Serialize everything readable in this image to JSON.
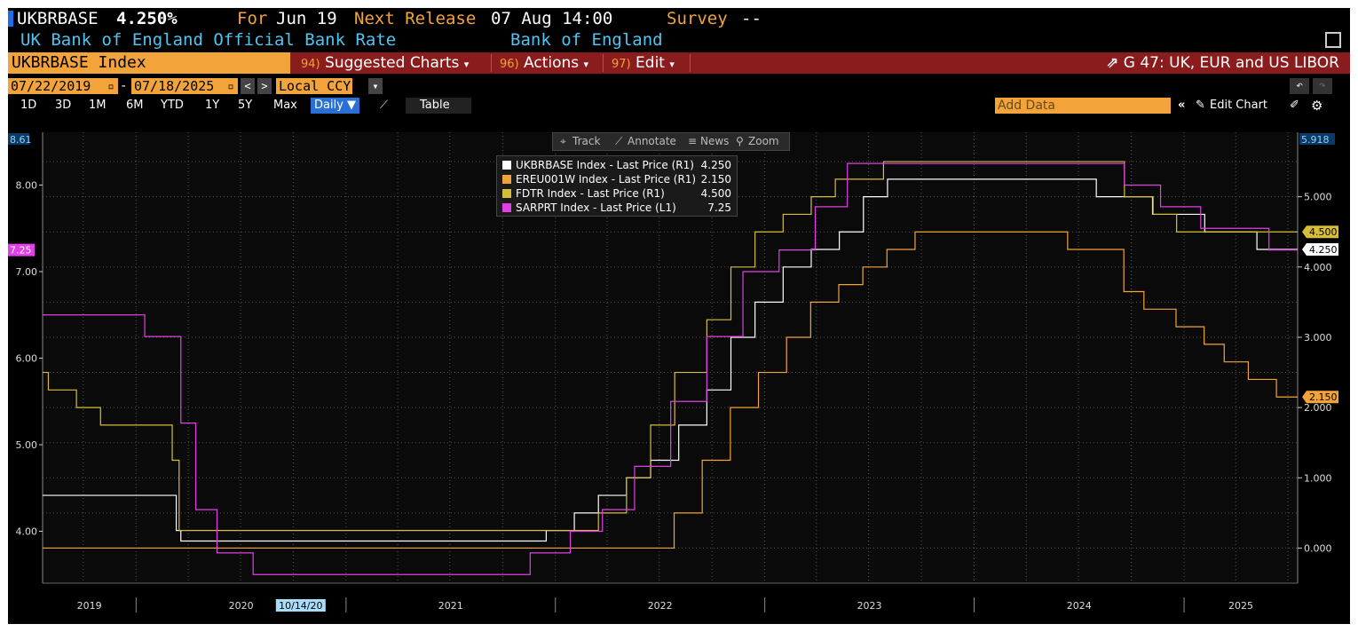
{
  "header": {
    "ticker": "UKBRBASE",
    "value": "4.250%",
    "for_label": "For",
    "for_value": "Jun 19",
    "next_release_label": "Next Release",
    "next_release_value": "07 Aug 14:00",
    "survey_label": "Survey",
    "survey_value": "--",
    "description": "UK Bank of England Official Bank Rate",
    "source": "Bank of England"
  },
  "command_bar": {
    "security": "UKBRBASE Index",
    "suggested_num": "94)",
    "suggested_label": "Suggested Charts",
    "actions_num": "96)",
    "actions_label": "Actions",
    "edit_num": "97)",
    "edit_label": "Edit",
    "chart_link": "G 47: UK, EUR and US LIBOR"
  },
  "date_range": {
    "start": "07/22/2019",
    "dash": "-",
    "end": "07/18/2025",
    "currency": "Local CCY"
  },
  "periods": [
    "1D",
    "3D",
    "1M",
    "6M",
    "YTD",
    "1Y",
    "5Y",
    "Max"
  ],
  "frequency": "Daily ▼",
  "table_label": "Table",
  "add_data_placeholder": "Add Data",
  "edit_chart_label": "Edit Chart",
  "toolbox": {
    "track": "Track",
    "annotate": "Annotate",
    "news": "News",
    "zoom": "Zoom"
  },
  "legend": [
    {
      "name": "UKBRBASE Index - Last Price (R1)",
      "value": "4.250",
      "color": "#ffffff"
    },
    {
      "name": "EREU001W Index - Last Price (R1)",
      "value": "2.150",
      "color": "#f2a33a"
    },
    {
      "name": "FDTR Index - Last Price (R1)",
      "value": "4.500",
      "color": "#d6bd3a"
    },
    {
      "name": "SARPRT Index - Last Price (L1)",
      "value": "7.25",
      "color": "#e040e6"
    }
  ],
  "colors": {
    "ukbr": "#ffffff",
    "ereu": "#f2a33a",
    "fdtr": "#d6bd3a",
    "sarprt": "#e040e6",
    "grid": "#555555",
    "background": "#000000"
  },
  "chart_data": {
    "type": "line",
    "x_range": [
      "2019-07-22",
      "2025-07-18"
    ],
    "x_tick_labels": [
      "2019",
      "2020",
      "2021",
      "2022",
      "2023",
      "2024",
      "2025"
    ],
    "crosshair_date_label": "10/14/20",
    "left_axis": {
      "ticks": [
        "4.00",
        "5.00",
        "6.00",
        "7.00",
        "8.00"
      ],
      "top_label": "8.61",
      "ylim": [
        3.4,
        8.61
      ],
      "last_value_label": "7.25"
    },
    "right_axis": {
      "ticks": [
        "0.000",
        "1.000",
        "2.000",
        "3.000",
        "4.000",
        "5.000"
      ],
      "top_label": "5.918",
      "ylim": [
        -0.5,
        5.918
      ],
      "last_value_labels": [
        "4.500",
        "4.250",
        "2.150"
      ]
    },
    "series": [
      {
        "name": "UKBRBASE Index - Last Price (R1)",
        "axis": "right",
        "x": [
          "2019-07-22",
          "2020-03-11",
          "2020-03-19",
          "2021-12-16",
          "2022-02-03",
          "2022-03-17",
          "2022-05-05",
          "2022-06-16",
          "2022-08-04",
          "2022-09-22",
          "2022-11-03",
          "2022-12-15",
          "2023-02-02",
          "2023-03-23",
          "2023-05-11",
          "2023-06-22",
          "2023-08-03",
          "2024-08-01",
          "2024-11-07",
          "2025-02-06",
          "2025-05-08",
          "2025-07-18"
        ],
        "y": [
          0.75,
          0.25,
          0.1,
          0.25,
          0.5,
          0.75,
          1.0,
          1.25,
          1.75,
          2.25,
          3.0,
          3.5,
          4.0,
          4.25,
          4.5,
          5.0,
          5.25,
          5.0,
          4.75,
          4.5,
          4.25,
          4.25
        ]
      },
      {
        "name": "EREU001W Index - Last Price (R1)",
        "axis": "right",
        "x": [
          "2019-07-22",
          "2022-07-27",
          "2022-09-14",
          "2022-11-02",
          "2022-12-21",
          "2023-02-08",
          "2023-03-22",
          "2023-05-10",
          "2023-06-21",
          "2023-08-02",
          "2023-09-20",
          "2024-06-12",
          "2024-09-18",
          "2024-10-23",
          "2024-12-18",
          "2025-02-05",
          "2025-03-12",
          "2025-04-23",
          "2025-06-11",
          "2025-07-18"
        ],
        "y": [
          0.0,
          0.5,
          1.25,
          2.0,
          2.5,
          3.0,
          3.5,
          3.75,
          4.0,
          4.25,
          4.5,
          4.25,
          3.65,
          3.4,
          3.15,
          2.9,
          2.65,
          2.4,
          2.15,
          2.15
        ]
      },
      {
        "name": "FDTR Index - Last Price (R1)",
        "axis": "right",
        "x": [
          "2019-07-22",
          "2019-08-01",
          "2019-09-19",
          "2019-10-31",
          "2020-03-04",
          "2020-03-16",
          "2022-03-17",
          "2022-05-05",
          "2022-06-16",
          "2022-07-28",
          "2022-09-22",
          "2022-11-03",
          "2022-12-15",
          "2023-02-02",
          "2023-03-23",
          "2023-05-04",
          "2023-07-27",
          "2024-09-19",
          "2024-11-08",
          "2024-12-19",
          "2025-07-18"
        ],
        "y": [
          2.5,
          2.25,
          2.0,
          1.75,
          1.25,
          0.25,
          0.5,
          1.0,
          1.75,
          2.5,
          3.25,
          4.0,
          4.5,
          4.75,
          5.0,
          5.25,
          5.5,
          5.0,
          4.75,
          4.5,
          4.5
        ]
      },
      {
        "name": "SARPRT Index - Last Price (L1)",
        "axis": "left",
        "x": [
          "2019-07-22",
          "2019-07-18",
          "2019-11-21",
          "2020-01-16",
          "2020-03-19",
          "2020-04-14",
          "2020-05-21",
          "2020-07-23",
          "2021-11-18",
          "2022-01-27",
          "2022-03-24",
          "2022-05-19",
          "2022-07-21",
          "2022-09-22",
          "2022-11-24",
          "2023-01-26",
          "2023-03-30",
          "2023-05-25",
          "2024-09-19",
          "2024-11-21",
          "2025-01-30",
          "2025-05-29",
          "2025-07-18"
        ],
        "y": [
          6.5,
          6.5,
          6.5,
          6.25,
          5.25,
          4.25,
          3.75,
          3.5,
          3.75,
          4.0,
          4.25,
          4.75,
          5.5,
          6.25,
          7.0,
          7.25,
          7.75,
          8.25,
          8.0,
          7.75,
          7.5,
          7.25,
          7.25
        ]
      }
    ],
    "grid": true
  }
}
